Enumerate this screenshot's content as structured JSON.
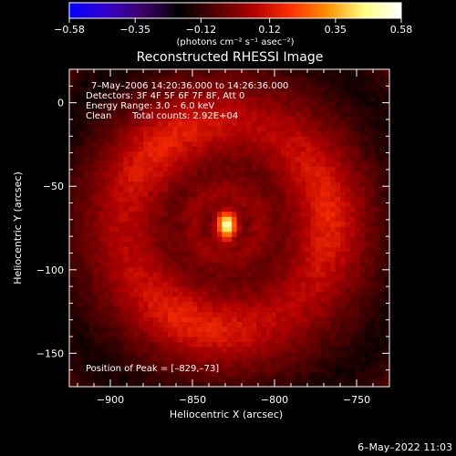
{
  "chart_data": {
    "type": "heatmap",
    "title": "Reconstructed RHESSI Image",
    "xlabel": "Heliocentric X (arcsec)",
    "ylabel": "Heliocentric Y (arcsec)",
    "xlim": [
      -925,
      -730
    ],
    "ylim": [
      -170,
      20
    ],
    "x_ticks": [
      -900,
      -850,
      -800,
      -750
    ],
    "y_ticks": [
      0,
      -50,
      -100,
      -150
    ],
    "x_tick_labels": [
      "−900",
      "−850",
      "−800",
      "−750"
    ],
    "y_tick_labels": [
      "0",
      "−50",
      "−100",
      "−150"
    ],
    "colorbar": {
      "range": [
        -0.58,
        0.58
      ],
      "ticks": [
        -0.58,
        -0.35,
        -0.12,
        0.12,
        0.35,
        0.58
      ],
      "tick_labels": [
        "−0.58",
        "−0.35",
        "−0.12",
        "0.12",
        "0.35",
        "0.58"
      ],
      "unit_label": "(photons cm⁻² s⁻¹ asec⁻²)",
      "colors": [
        "#0000ff",
        "#3300cc",
        "#3d0066",
        "#000000",
        "#550000",
        "#b00000",
        "#ff3000",
        "#ff9000",
        "#ffff80",
        "#ffffff"
      ]
    },
    "annotations": {
      "time_range": "7–May–2006 14:20:36.000 to 14:26:36.000",
      "detectors": "Detectors: 3F 4F 5F 6F 7F 8F, Att 0",
      "energy_range": "Energy Range: 3.0 – 6.0 keV",
      "method": "Clean",
      "total_counts": "Total counts: 2.92E+04",
      "peak": "Position of Peak = [–829,–73]"
    },
    "peak_position": [
      -829,
      -73
    ],
    "source_peak_value": 0.58,
    "ring_center": [
      -829,
      -73
    ],
    "ring_radius_arcsec": 62,
    "ring_peak_value": 0.2
  },
  "footer": {
    "date": "6–May–2022 11:03"
  }
}
